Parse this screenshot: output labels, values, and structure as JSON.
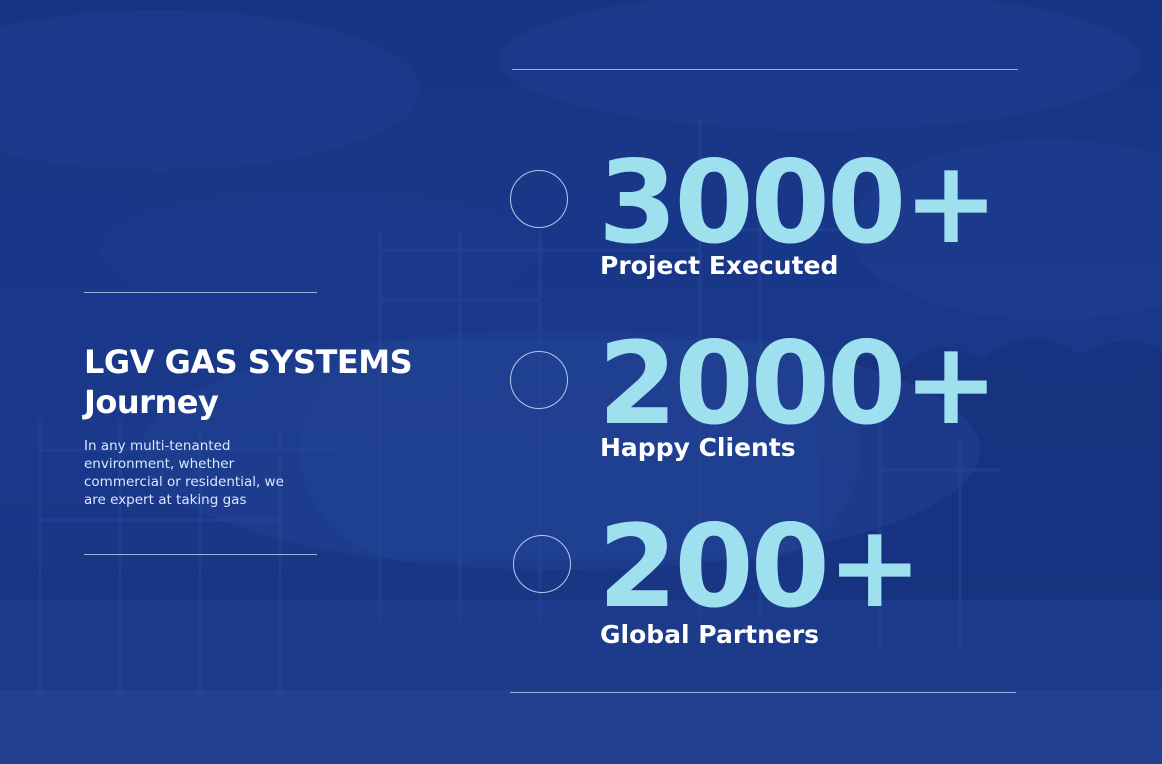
{
  "colors": {
    "background": "#16307a",
    "accent": "#9fe0ef",
    "text": "#ffffff"
  },
  "section": {
    "title_line1": "LGV GAS SYSTEMS",
    "title_line2": "Journey",
    "description": "In any multi-tenanted environment, whether commercial or residential, we are expert at taking gas"
  },
  "stats": [
    {
      "value": "3000+",
      "label": "Project Executed"
    },
    {
      "value": "2000+",
      "label": "Happy Clients"
    },
    {
      "value": "200+",
      "label": "Global Partners"
    }
  ]
}
